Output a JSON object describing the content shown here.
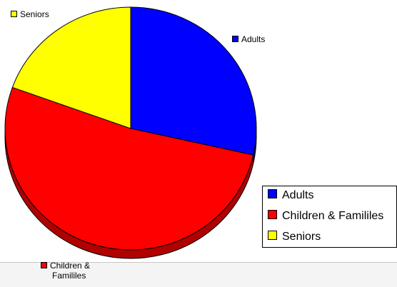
{
  "chart_data": {
    "type": "pie",
    "style": "3d",
    "title": "",
    "categories": [
      "Adults",
      "Children & Famililes",
      "Seniors"
    ],
    "values": [
      28.5,
      52.0,
      19.5
    ],
    "colors": [
      "#0000FF",
      "#FF0000",
      "#FFFF00"
    ],
    "shadow_colors": [
      "#00008B",
      "#B00000",
      "#B0B000"
    ],
    "legend_position": "right",
    "data_labels": {
      "adults": "Adults",
      "children_line1": "Children &",
      "children_line2": "Famililes",
      "seniors": "Seniors"
    },
    "legend": [
      {
        "label": "Adults",
        "color": "#0000FF"
      },
      {
        "label": "Children & Famililes",
        "color": "#FF0000"
      },
      {
        "label": "Seniors",
        "color": "#FFFF00"
      }
    ]
  }
}
